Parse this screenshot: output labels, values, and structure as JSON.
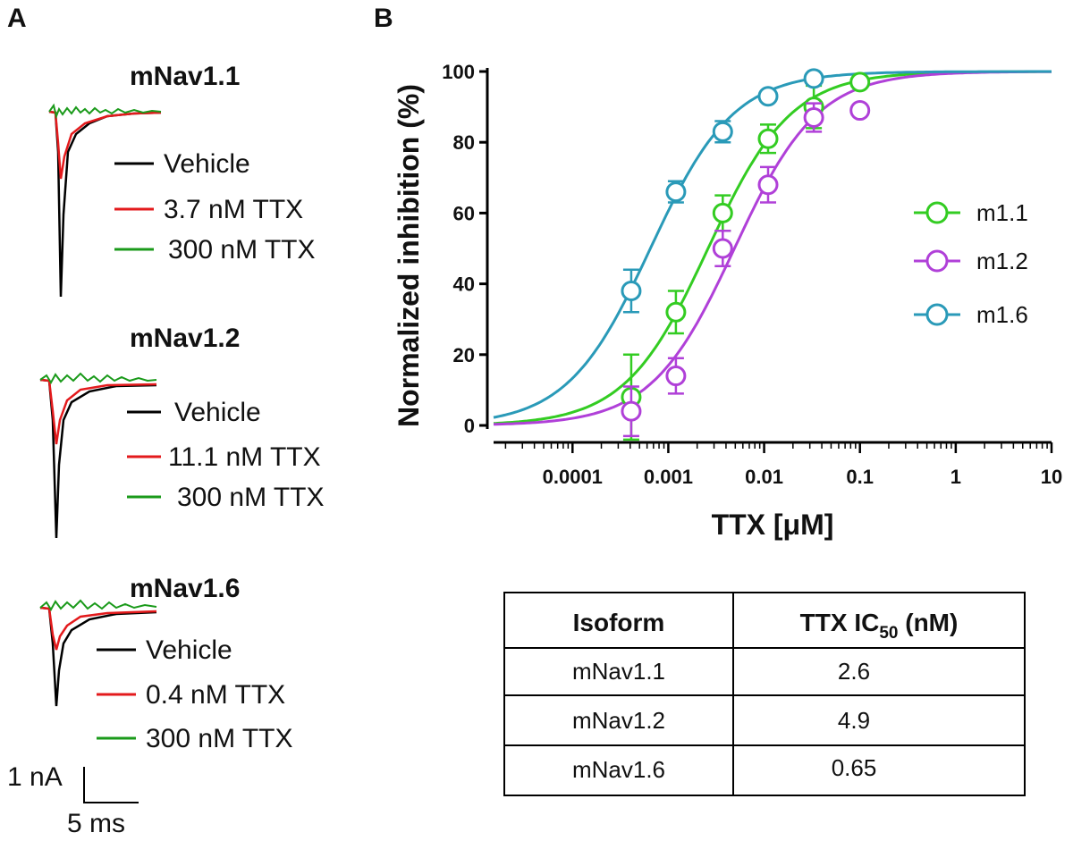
{
  "panel_labels": {
    "a": "A",
    "b": "B"
  },
  "colors": {
    "vehicle": "#000000",
    "low_dose": "#e31a1c",
    "high_dose": "#1a9a1a",
    "m1_1": "#33cc22",
    "m1_2": "#b040d8",
    "m1_6": "#2a9ab8"
  },
  "traces": [
    {
      "title": "mNav1.1",
      "legend": [
        "Vehicle",
        "3.7 nM TTX",
        "300 nM TTX"
      ]
    },
    {
      "title": "mNav1.2",
      "legend": [
        "Vehicle",
        "11.1 nM TTX",
        "300 nM TTX"
      ]
    },
    {
      "title": "mNav1.6",
      "legend": [
        "Vehicle",
        "0.4 nM TTX",
        "300 nM TTX"
      ]
    }
  ],
  "scale_bar": {
    "current": "1 nA",
    "time": "5 ms"
  },
  "chart_data": {
    "type": "scatter",
    "xlabel": "TTX [μM]",
    "ylabel": "Normalized inhibition (%)",
    "xscale": "log",
    "xlim": [
      1.5e-05,
      10
    ],
    "ylim": [
      0,
      100
    ],
    "xticks": [
      0.0001,
      0.001,
      0.01,
      0.1,
      1,
      10
    ],
    "xtick_labels": [
      "0.0001",
      "0.001",
      "0.01",
      "0.1",
      "1",
      "10"
    ],
    "yticks": [
      0,
      20,
      40,
      60,
      80,
      100
    ],
    "ytick_labels": [
      "0",
      "20",
      "40",
      "60",
      "80",
      "100"
    ],
    "legend_position": "right",
    "series": [
      {
        "name": "m1.1",
        "color_key": "m1_1",
        "ic50_uM": 0.0026,
        "x": [
          0.00041,
          0.0012,
          0.0037,
          0.011,
          0.033,
          0.1
        ],
        "y": [
          8,
          32,
          60,
          81,
          90,
          97
        ],
        "err": [
          12,
          6,
          5,
          4,
          6,
          0
        ]
      },
      {
        "name": "m1.2",
        "color_key": "m1_2",
        "ic50_uM": 0.0049,
        "x": [
          0.00041,
          0.0012,
          0.0037,
          0.011,
          0.033,
          0.1
        ],
        "y": [
          4,
          14,
          50,
          68,
          87,
          89
        ],
        "err": [
          7,
          5,
          5,
          5,
          4,
          0
        ]
      },
      {
        "name": "m1.6",
        "color_key": "m1_6",
        "ic50_uM": 0.00065,
        "x": [
          0.00041,
          0.0012,
          0.0037,
          0.011,
          0.033
        ],
        "y": [
          38,
          66,
          83,
          93,
          98
        ],
        "err": [
          6,
          3,
          3,
          0,
          0
        ]
      }
    ]
  },
  "table": {
    "headers": [
      "Isoform",
      "TTX IC",
      "50",
      " (nM)"
    ],
    "rows": [
      [
        "mNav1.1",
        "2.6"
      ],
      [
        "mNav1.2",
        "4.9"
      ],
      [
        "mNav1.6",
        "0.65"
      ]
    ]
  }
}
